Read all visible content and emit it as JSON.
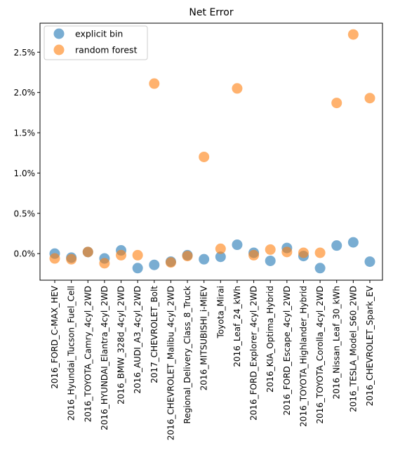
{
  "chart_data": {
    "type": "scatter",
    "title": "Net Error",
    "xlabel": "",
    "ylabel": "",
    "categories": [
      "2016_FORD_C-MAX_HEV",
      "2016_Hyundai_Tucson_Fuel_Cell",
      "2016_TOYOTA_Camry_4cyl_2WD",
      "2016_HYUNDAI_Elantra_4cyl_2WD",
      "2016_BMW_328d_4cyl_2WD",
      "2016_AUDI_A3_4cyl_2WD",
      "2017_CHEVROLET_Bolt",
      "2016_CHEVROLET_Malibu_4cyl_2WD",
      "Regional_Delivery_Class_8_Truck",
      "2016_MITSUBISHI_i-MiEV",
      "Toyota_Mirai",
      "2016_Leaf_24_kWh",
      "2016_FORD_Explorer_4cyl_2WD",
      "2016_KIA_Optima_Hybrid",
      "2016_FORD_Escape_4cyl_2WD",
      "2016_TOYOTA_Highlander_Hybrid",
      "2016_TOYOTA_Corolla_4cyl_2WD",
      "2016_Nissan_Leaf_30_kWh",
      "2016_TESLA_Model_S60_2WD",
      "2016_CHEVROLET_Spark_EV"
    ],
    "series": [
      {
        "name": "explicit bin",
        "color": "#1f77b4",
        "values": [
          0.0,
          -0.05,
          0.02,
          -0.06,
          0.04,
          -0.18,
          -0.14,
          -0.1,
          -0.02,
          -0.07,
          -0.04,
          0.11,
          0.01,
          -0.09,
          0.07,
          -0.03,
          -0.18,
          0.1,
          0.14,
          -0.1
        ]
      },
      {
        "name": "random forest",
        "color": "#ff7f0e",
        "values": [
          -0.06,
          -0.07,
          0.02,
          -0.12,
          -0.02,
          -0.02,
          2.11,
          -0.11,
          -0.03,
          1.2,
          0.06,
          2.05,
          -0.02,
          0.05,
          0.02,
          0.01,
          0.01,
          1.87,
          2.72,
          1.93
        ]
      }
    ],
    "yticks": [
      0.0,
      0.5,
      1.0,
      1.5,
      2.0,
      2.5
    ],
    "ytick_labels": [
      "0.0%",
      "0.5%",
      "1.0%",
      "1.5%",
      "2.0%",
      "2.5%"
    ],
    "ylim": [
      -0.33,
      2.86
    ],
    "grid": false,
    "legend_position": "upper-left"
  }
}
